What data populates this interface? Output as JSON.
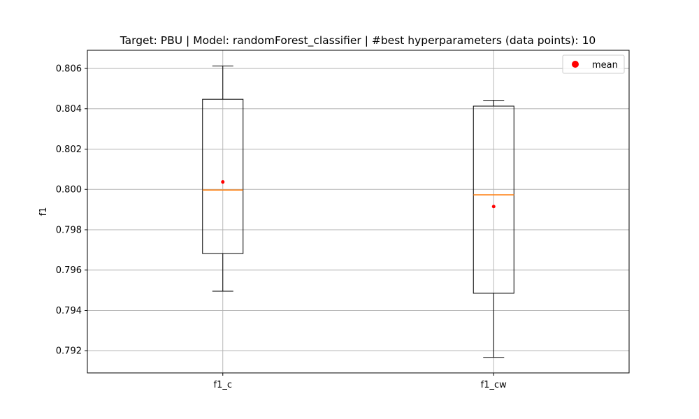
{
  "chart_data": {
    "type": "boxplot",
    "title": "Target: PBU | Model: randomForest_classifier | #best hyperparameters (data points): 10",
    "xlabel": "",
    "ylabel": "f1",
    "ylim": [
      0.7909,
      0.8069
    ],
    "yticks": [
      0.792,
      0.794,
      0.796,
      0.798,
      0.8,
      0.802,
      0.804,
      0.806
    ],
    "ytick_labels": [
      "0.792",
      "0.794",
      "0.796",
      "0.798",
      "0.800",
      "0.802",
      "0.804",
      "0.806"
    ],
    "grid": true,
    "legend": {
      "position": "top-right",
      "entries": [
        {
          "label": "mean",
          "color": "#ff0000",
          "marker": "circle"
        }
      ]
    },
    "colors": {
      "box": "#000000",
      "median": "#ff7f0e",
      "mean": "#ff0000",
      "grid": "#b0b0b0"
    },
    "categories": [
      "f1_c",
      "f1_cw"
    ],
    "boxes": [
      {
        "name": "f1_c",
        "whisker_low": 0.79495,
        "q1": 0.79682,
        "median": 0.79997,
        "q3": 0.80447,
        "whisker_high": 0.80612,
        "mean": 0.80037
      },
      {
        "name": "f1_cw",
        "whisker_low": 0.79167,
        "q1": 0.79485,
        "median": 0.79973,
        "q3": 0.80413,
        "whisker_high": 0.80442,
        "mean": 0.79915
      }
    ]
  }
}
